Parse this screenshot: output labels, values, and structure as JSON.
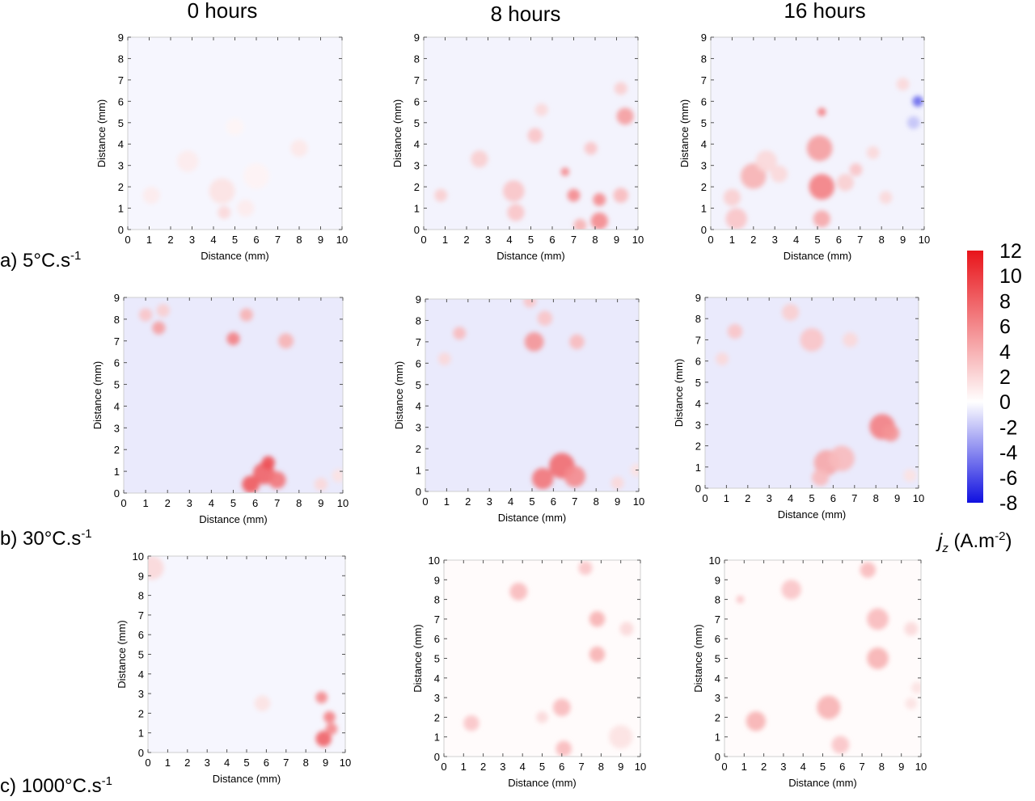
{
  "column_titles": [
    "0 hours",
    "8 hours",
    "16 hours"
  ],
  "row_labels": [
    {
      "prefix": "a) 5°C.s",
      "sup": "-1"
    },
    {
      "prefix": "b) 30°C.s",
      "sup": "-1"
    },
    {
      "prefix": "c) 1000°C.s",
      "sup": "-1"
    }
  ],
  "colorbar": {
    "label_var": "j",
    "label_sub": "z",
    "label_unit": " (A.m",
    "label_sup": "-2",
    "label_close": ")",
    "ticks": [
      "12",
      "10",
      "8",
      "6",
      "4",
      "2",
      "0",
      "-2",
      "-4",
      "-6",
      "-8"
    ],
    "range": [
      -8,
      12
    ],
    "colors": {
      "max": "#e8141a",
      "zero": "#ffffff",
      "min": "#1010e0"
    }
  },
  "chart_data": [
    {
      "type": "heatmap",
      "row": "a) 5°C.s-1",
      "column": "0 hours",
      "xlabel": "Distance (mm)",
      "ylabel": "Distance (mm)",
      "xlim": [
        0,
        10
      ],
      "ylim": [
        0,
        9
      ],
      "xticks": [
        "0",
        "1",
        "2",
        "3",
        "4",
        "5",
        "6",
        "7",
        "8",
        "9",
        "10"
      ],
      "yticks": [
        "0",
        "1",
        "2",
        "3",
        "4",
        "5",
        "6",
        "7",
        "8",
        "9"
      ],
      "background": -0.3,
      "spots": [
        [
          1.1,
          1.6,
          1.0,
          0.4
        ],
        [
          2.8,
          3.2,
          1.0,
          0.5
        ],
        [
          4.4,
          1.8,
          1.5,
          0.6
        ],
        [
          4.5,
          0.8,
          2.0,
          0.3
        ],
        [
          5.5,
          1.0,
          1.0,
          0.4
        ],
        [
          8.0,
          3.8,
          1.2,
          0.4
        ],
        [
          6.0,
          2.5,
          0.6,
          0.6
        ],
        [
          5.0,
          4.8,
          0.5,
          0.4
        ]
      ]
    },
    {
      "type": "heatmap",
      "row": "a) 5°C.s-1",
      "column": "8 hours",
      "xlabel": "Distance (mm)",
      "ylabel": "Distance (mm)",
      "xlim": [
        0,
        10
      ],
      "ylim": [
        0,
        9
      ],
      "xticks": [
        "0",
        "1",
        "2",
        "3",
        "4",
        "5",
        "6",
        "7",
        "8",
        "9",
        "10"
      ],
      "yticks": [
        "0",
        "1",
        "2",
        "3",
        "4",
        "5",
        "6",
        "7",
        "8",
        "9"
      ],
      "background": -0.4,
      "spots": [
        [
          0.8,
          1.6,
          2.5,
          0.3
        ],
        [
          2.6,
          3.3,
          2.5,
          0.4
        ],
        [
          4.2,
          1.8,
          3.0,
          0.5
        ],
        [
          4.3,
          0.8,
          3.0,
          0.4
        ],
        [
          5.2,
          4.4,
          3.0,
          0.35
        ],
        [
          5.5,
          5.6,
          2.0,
          0.3
        ],
        [
          6.6,
          2.7,
          6.0,
          0.2
        ],
        [
          7.0,
          1.6,
          6.0,
          0.3
        ],
        [
          7.8,
          3.8,
          3.0,
          0.3
        ],
        [
          8.2,
          1.4,
          6.0,
          0.3
        ],
        [
          8.2,
          0.4,
          6.0,
          0.4
        ],
        [
          9.2,
          1.6,
          3.5,
          0.35
        ],
        [
          9.4,
          5.3,
          5.0,
          0.4
        ],
        [
          9.2,
          6.6,
          2.5,
          0.3
        ],
        [
          7.3,
          0.2,
          4.0,
          0.3
        ]
      ]
    },
    {
      "type": "heatmap",
      "row": "a) 5°C.s-1",
      "column": "16 hours",
      "xlabel": "Distance (mm)",
      "ylabel": "Distance (mm)",
      "xlim": [
        0,
        10
      ],
      "ylim": [
        0,
        9
      ],
      "xticks": [
        "0",
        "1",
        "2",
        "3",
        "4",
        "5",
        "6",
        "7",
        "8",
        "9",
        "10"
      ],
      "yticks": [
        "0",
        "1",
        "2",
        "3",
        "4",
        "5",
        "6",
        "7",
        "8",
        "9"
      ],
      "background": -0.4,
      "spots": [
        [
          1.0,
          1.5,
          2.5,
          0.4
        ],
        [
          1.2,
          0.5,
          3.0,
          0.5
        ],
        [
          2.0,
          2.5,
          4.0,
          0.6
        ],
        [
          2.6,
          3.2,
          2.0,
          0.5
        ],
        [
          3.2,
          2.6,
          2.0,
          0.4
        ],
        [
          5.1,
          3.8,
          5.0,
          0.6
        ],
        [
          5.2,
          2.0,
          6.5,
          0.6
        ],
        [
          5.2,
          0.5,
          4.5,
          0.4
        ],
        [
          5.2,
          5.5,
          6.5,
          0.2
        ],
        [
          6.3,
          2.2,
          2.5,
          0.4
        ],
        [
          6.8,
          2.8,
          3.0,
          0.3
        ],
        [
          8.2,
          1.5,
          2.0,
          0.3
        ],
        [
          9.0,
          6.8,
          2.0,
          0.3
        ],
        [
          7.6,
          3.6,
          2.0,
          0.3
        ],
        [
          9.7,
          6.0,
          -5.0,
          0.25
        ],
        [
          9.5,
          5.0,
          -2.0,
          0.3
        ]
      ]
    },
    {
      "type": "heatmap",
      "row": "b) 30°C.s-1",
      "column": "0 hours",
      "xlabel": "Distance (mm)",
      "ylabel": "Distance (mm)",
      "xlim": [
        0,
        10
      ],
      "ylim": [
        0,
        9
      ],
      "xticks": [
        "0",
        "1",
        "2",
        "3",
        "4",
        "5",
        "6",
        "7",
        "8",
        "9",
        "10"
      ],
      "yticks": [
        "0",
        "1",
        "2",
        "3",
        "4",
        "5",
        "6",
        "7",
        "8",
        "9"
      ],
      "background": -0.7,
      "spots": [
        [
          1.0,
          8.2,
          3.0,
          0.3
        ],
        [
          1.6,
          7.6,
          5.0,
          0.3
        ],
        [
          1.8,
          8.4,
          2.5,
          0.3
        ],
        [
          5.0,
          7.1,
          6.5,
          0.3
        ],
        [
          5.6,
          8.2,
          4.0,
          0.3
        ],
        [
          7.4,
          7.0,
          4.0,
          0.35
        ],
        [
          5.8,
          0.4,
          8.5,
          0.4
        ],
        [
          6.4,
          0.9,
          8.0,
          0.5
        ],
        [
          6.6,
          1.4,
          9.0,
          0.3
        ],
        [
          7.0,
          0.6,
          7.0,
          0.4
        ],
        [
          9.0,
          0.4,
          2.0,
          0.3
        ],
        [
          9.8,
          0.8,
          1.5,
          0.3
        ]
      ]
    },
    {
      "type": "heatmap",
      "row": "b) 30°C.s-1",
      "column": "8 hours",
      "xlabel": "Distance (mm)",
      "ylabel": "Distance (mm)",
      "xlim": [
        0,
        10
      ],
      "ylim": [
        0,
        9
      ],
      "xticks": [
        "0",
        "1",
        "2",
        "3",
        "4",
        "5",
        "6",
        "7",
        "8",
        "9",
        "10"
      ],
      "yticks": [
        "0",
        "1",
        "2",
        "3",
        "4",
        "5",
        "6",
        "7",
        "8",
        "9"
      ],
      "background": -0.7,
      "spots": [
        [
          1.6,
          7.4,
          3.5,
          0.3
        ],
        [
          0.9,
          6.2,
          2.0,
          0.3
        ],
        [
          5.1,
          7.0,
          5.5,
          0.45
        ],
        [
          5.6,
          8.1,
          3.0,
          0.35
        ],
        [
          7.1,
          7.0,
          3.5,
          0.35
        ],
        [
          5.5,
          0.6,
          7.0,
          0.5
        ],
        [
          6.4,
          1.2,
          7.5,
          0.6
        ],
        [
          7.0,
          0.7,
          6.0,
          0.5
        ],
        [
          4.9,
          8.9,
          3.0,
          0.3
        ],
        [
          9.0,
          0.4,
          2.0,
          0.3
        ],
        [
          9.9,
          1.0,
          1.5,
          0.3
        ]
      ]
    },
    {
      "type": "heatmap",
      "row": "b) 30°C.s-1",
      "column": "16 hours",
      "xlabel": "Distance (mm)",
      "ylabel": "Distance (mm)",
      "xlim": [
        0,
        10
      ],
      "ylim": [
        0,
        9
      ],
      "xticks": [
        "0",
        "1",
        "2",
        "3",
        "4",
        "5",
        "6",
        "7",
        "8",
        "9",
        "10"
      ],
      "yticks": [
        "0",
        "1",
        "2",
        "3",
        "4",
        "5",
        "6",
        "7",
        "8",
        "9"
      ],
      "background": -0.7,
      "spots": [
        [
          1.4,
          7.4,
          3.0,
          0.35
        ],
        [
          0.8,
          6.1,
          2.0,
          0.3
        ],
        [
          4.0,
          8.3,
          2.5,
          0.4
        ],
        [
          5.0,
          7.0,
          3.0,
          0.55
        ],
        [
          6.8,
          7.0,
          2.0,
          0.35
        ],
        [
          5.7,
          1.2,
          4.5,
          0.6
        ],
        [
          6.4,
          1.4,
          3.5,
          0.6
        ],
        [
          5.4,
          0.5,
          3.5,
          0.4
        ],
        [
          8.3,
          2.9,
          6.5,
          0.6
        ],
        [
          8.7,
          2.6,
          5.5,
          0.4
        ],
        [
          9.6,
          0.6,
          1.5,
          0.3
        ]
      ]
    },
    {
      "type": "heatmap",
      "row": "c) 1000°C.s-1",
      "column": "0 hours",
      "xlabel": "Distance (mm)",
      "ylabel": "Distance (mm)",
      "xlim": [
        0,
        10
      ],
      "ylim": [
        0,
        10
      ],
      "xticks": [
        "0",
        "1",
        "2",
        "3",
        "4",
        "5",
        "6",
        "7",
        "8",
        "9",
        "10"
      ],
      "yticks": [
        "0",
        "1",
        "2",
        "3",
        "4",
        "5",
        "6",
        "7",
        "8",
        "9",
        "10"
      ],
      "background": -0.3,
      "spots": [
        [
          0.2,
          9.4,
          2.0,
          0.6
        ],
        [
          5.8,
          2.5,
          1.5,
          0.4
        ],
        [
          8.8,
          2.8,
          6.0,
          0.3
        ],
        [
          9.2,
          1.8,
          6.5,
          0.3
        ],
        [
          8.9,
          0.7,
          8.0,
          0.4
        ],
        [
          9.3,
          1.2,
          6.0,
          0.3
        ]
      ]
    },
    {
      "type": "heatmap",
      "row": "c) 1000°C.s-1",
      "column": "8 hours",
      "xlabel": "Distance (mm)",
      "ylabel": "Distance (mm)",
      "xlim": [
        0,
        10
      ],
      "ylim": [
        0,
        10
      ],
      "xticks": [
        "0",
        "1",
        "2",
        "3",
        "4",
        "5",
        "6",
        "7",
        "8",
        "9",
        "10"
      ],
      "yticks": [
        "0",
        "1",
        "2",
        "3",
        "4",
        "5",
        "6",
        "7",
        "8",
        "9",
        "10"
      ],
      "background": 0.2,
      "spots": [
        [
          3.8,
          8.4,
          3.5,
          0.45
        ],
        [
          7.2,
          9.6,
          3.0,
          0.35
        ],
        [
          7.8,
          7.0,
          4.0,
          0.4
        ],
        [
          7.8,
          5.2,
          4.0,
          0.4
        ],
        [
          9.3,
          6.5,
          2.0,
          0.35
        ],
        [
          6.0,
          2.5,
          3.5,
          0.45
        ],
        [
          5.0,
          2.0,
          2.0,
          0.3
        ],
        [
          6.1,
          0.4,
          3.5,
          0.4
        ],
        [
          1.4,
          1.7,
          3.0,
          0.4
        ],
        [
          9.0,
          1.0,
          1.5,
          0.6
        ]
      ]
    },
    {
      "type": "heatmap",
      "row": "c) 1000°C.s-1",
      "column": "16 hours",
      "xlabel": "Distance (mm)",
      "ylabel": "Distance (mm)",
      "xlim": [
        0,
        10
      ],
      "ylim": [
        0,
        10
      ],
      "xticks": [
        "0",
        "1",
        "2",
        "3",
        "4",
        "5",
        "6",
        "7",
        "8",
        "9",
        "10"
      ],
      "yticks": [
        "0",
        "1",
        "2",
        "3",
        "4",
        "5",
        "6",
        "7",
        "8",
        "9",
        "10"
      ],
      "background": 0.2,
      "spots": [
        [
          0.8,
          8.0,
          3.0,
          0.2
        ],
        [
          3.4,
          8.5,
          3.0,
          0.5
        ],
        [
          7.3,
          9.5,
          3.5,
          0.4
        ],
        [
          7.8,
          7.0,
          3.5,
          0.55
        ],
        [
          7.8,
          5.0,
          4.0,
          0.55
        ],
        [
          9.5,
          6.5,
          2.0,
          0.35
        ],
        [
          9.8,
          3.5,
          1.5,
          0.3
        ],
        [
          5.3,
          2.5,
          4.0,
          0.6
        ],
        [
          5.9,
          0.6,
          3.0,
          0.45
        ],
        [
          1.6,
          1.8,
          4.0,
          0.5
        ],
        [
          9.5,
          2.7,
          1.5,
          0.3
        ]
      ]
    }
  ]
}
